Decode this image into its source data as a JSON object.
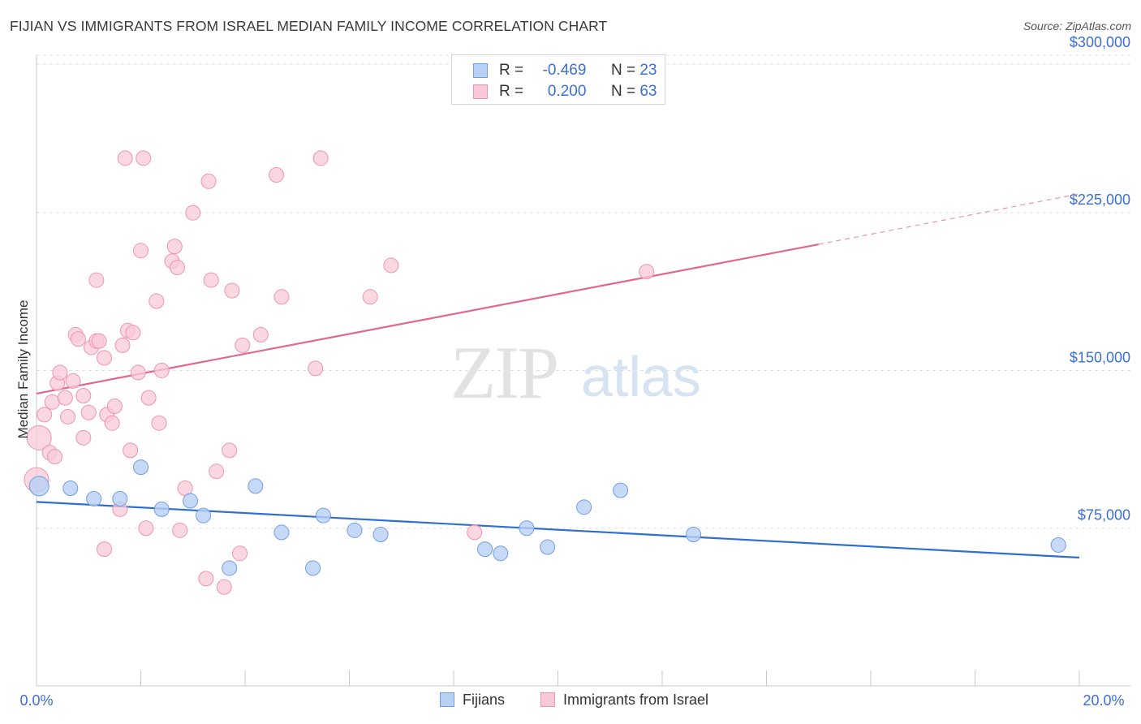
{
  "title": "FIJIAN VS IMMIGRANTS FROM ISRAEL MEDIAN FAMILY INCOME CORRELATION CHART",
  "source": "Source: ZipAtlas.com",
  "watermark": {
    "zip": "ZIP",
    "atlas": "atlas"
  },
  "legend": {
    "row1": {
      "r_label": "R =",
      "r_value": "-0.469",
      "n_label": "N =",
      "n_value": "23"
    },
    "row2": {
      "r_label": "R =",
      "r_value": "0.200",
      "n_label": "N =",
      "n_value": "63"
    }
  },
  "bottom_legend": {
    "fijians": "Fijians",
    "israel": "Immigrants from Israel"
  },
  "colors": {
    "fijians_fill": "#b8d0f4",
    "fijians_stroke": "#6f9ee3",
    "fijians_line": "#2e6fd1",
    "israel_fill": "#f9c9d8",
    "israel_stroke": "#ee94b1",
    "israel_line": "#e2668f",
    "tick_label": "#3b6fd4",
    "grid": "#e0e0e0"
  },
  "chart_data": {
    "type": "scatter",
    "title": "FIJIAN VS IMMIGRANTS FROM ISRAEL MEDIAN FAMILY INCOME CORRELATION CHART",
    "xlabel": "",
    "ylabel": "Median Family Income",
    "xlim": [
      0,
      20
    ],
    "ylim": [
      0,
      310000
    ],
    "x_tick_labels": [
      "0.0%",
      "20.0%"
    ],
    "y_ticks": [
      75000,
      150000,
      225000,
      300000
    ],
    "y_tick_labels": [
      "$75,000",
      "$150,000",
      "$225,000",
      "$300,000"
    ],
    "grid": true,
    "legend_position": "top-center",
    "series": [
      {
        "name": "Fijians",
        "r": -0.469,
        "n": 23,
        "points": [
          [
            0.05,
            95000
          ],
          [
            0.65,
            94000
          ],
          [
            1.1,
            89000
          ],
          [
            1.6,
            89000
          ],
          [
            2.0,
            104000
          ],
          [
            2.4,
            84000
          ],
          [
            2.95,
            88000
          ],
          [
            3.2,
            81000
          ],
          [
            3.7,
            56000
          ],
          [
            4.2,
            95000
          ],
          [
            4.7,
            73000
          ],
          [
            5.3,
            56000
          ],
          [
            5.5,
            81000
          ],
          [
            6.1,
            74000
          ],
          [
            6.6,
            72000
          ],
          [
            8.6,
            65000
          ],
          [
            8.9,
            63000
          ],
          [
            9.4,
            75000
          ],
          [
            9.8,
            66000
          ],
          [
            10.5,
            85000
          ],
          [
            11.2,
            93000
          ],
          [
            12.6,
            72000
          ],
          [
            19.6,
            67000
          ]
        ],
        "trend": {
          "x": [
            0,
            20
          ],
          "y": [
            87500,
            61000
          ]
        }
      },
      {
        "name": "Immigrants from Israel",
        "r": 0.2,
        "n": 63,
        "points": [
          [
            0.0,
            98000
          ],
          [
            0.05,
            118000
          ],
          [
            0.15,
            129000
          ],
          [
            0.25,
            111000
          ],
          [
            0.3,
            135000
          ],
          [
            0.35,
            109000
          ],
          [
            0.4,
            144000
          ],
          [
            0.45,
            149000
          ],
          [
            0.55,
            137000
          ],
          [
            0.6,
            128000
          ],
          [
            0.7,
            145000
          ],
          [
            0.75,
            167000
          ],
          [
            0.8,
            165000
          ],
          [
            0.9,
            138000
          ],
          [
            0.9,
            118000
          ],
          [
            1.0,
            130000
          ],
          [
            1.05,
            161000
          ],
          [
            1.15,
            164000
          ],
          [
            1.15,
            193000
          ],
          [
            1.2,
            164000
          ],
          [
            1.3,
            156000
          ],
          [
            1.3,
            65000
          ],
          [
            1.35,
            129000
          ],
          [
            1.45,
            125000
          ],
          [
            1.5,
            133000
          ],
          [
            1.6,
            84000
          ],
          [
            1.65,
            162000
          ],
          [
            1.7,
            251000
          ],
          [
            1.75,
            169000
          ],
          [
            1.8,
            112000
          ],
          [
            1.85,
            168000
          ],
          [
            1.95,
            149000
          ],
          [
            2.0,
            207000
          ],
          [
            2.05,
            251000
          ],
          [
            2.1,
            75000
          ],
          [
            2.15,
            137000
          ],
          [
            2.3,
            183000
          ],
          [
            2.35,
            125000
          ],
          [
            2.4,
            150000
          ],
          [
            2.6,
            202000
          ],
          [
            2.65,
            209000
          ],
          [
            2.7,
            199000
          ],
          [
            2.75,
            74000
          ],
          [
            2.85,
            94000
          ],
          [
            3.0,
            225000
          ],
          [
            3.25,
            51000
          ],
          [
            3.3,
            240000
          ],
          [
            3.45,
            102000
          ],
          [
            3.6,
            47000
          ],
          [
            3.7,
            112000
          ],
          [
            3.75,
            188000
          ],
          [
            3.9,
            63000
          ],
          [
            3.95,
            162000
          ],
          [
            4.3,
            167000
          ],
          [
            4.6,
            243000
          ],
          [
            4.7,
            185000
          ],
          [
            5.35,
            151000
          ],
          [
            5.45,
            251000
          ],
          [
            6.4,
            185000
          ],
          [
            6.8,
            200000
          ],
          [
            8.4,
            73000
          ],
          [
            11.7,
            197000
          ],
          [
            3.35,
            193000
          ]
        ],
        "trend": {
          "x": [
            0,
            15
          ],
          "y": [
            139000,
            210000
          ]
        },
        "trend_dashed_extension": {
          "x": [
            15,
            20
          ],
          "y": [
            210000,
            234000
          ]
        }
      }
    ]
  }
}
